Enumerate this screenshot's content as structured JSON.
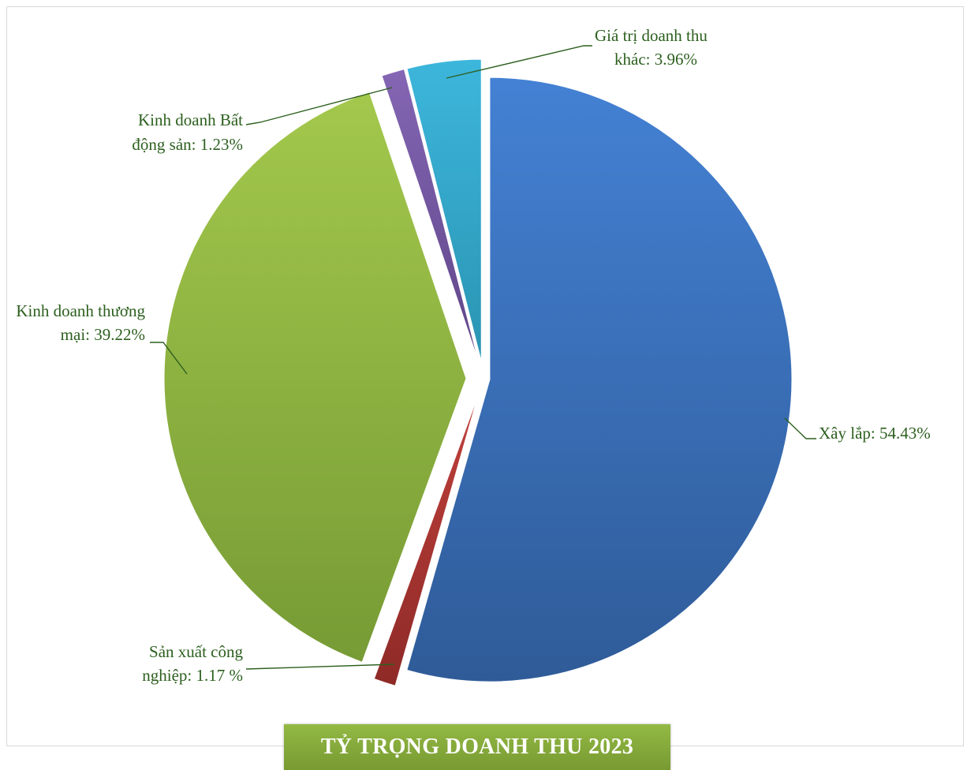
{
  "chart_data": {
    "type": "pie",
    "title": "TỶ TRỌNG DOANH THU 2023",
    "slices": [
      {
        "name": "Xây lắp",
        "value": 54.43,
        "label_lines": [
          "Xây lắp: 54.43%"
        ],
        "color_top": "#4481d4",
        "color_bottom": "#2f5b98"
      },
      {
        "name": "Sản xuất công nghiệp",
        "value": 1.17,
        "label_lines": [
          "Sản xuất công",
          "nghiệp: 1.17 %"
        ],
        "color_top": "#c0403c",
        "color_bottom": "#8e2a27"
      },
      {
        "name": "Kinh doanh thương mại",
        "value": 39.22,
        "label_lines": [
          "Kinh doanh thương",
          "mại: 39.22%"
        ],
        "color_top": "#a3c84c",
        "color_bottom": "#779b35"
      },
      {
        "name": "Kinh doanh Bất động sản",
        "value": 1.23,
        "label_lines": [
          "Kinh doanh Bất",
          "động sản: 1.23%"
        ],
        "color_top": "#8466b4",
        "color_bottom": "#5f4588"
      },
      {
        "name": "Giá trị doanh thu khác",
        "value": 3.96,
        "label_lines": [
          "Giá trị doanh thu",
          "khác: 3.96%"
        ],
        "color_top": "#3db6dc",
        "color_bottom": "#2a94b2"
      }
    ],
    "legend": "none",
    "data_labels": "outside-with-leader-lines"
  },
  "colors": {
    "label_text": "#2c5f1e",
    "leader_line": "#2c5f1e",
    "title_background": "#86ab3c",
    "title_text": "#ffffff"
  }
}
